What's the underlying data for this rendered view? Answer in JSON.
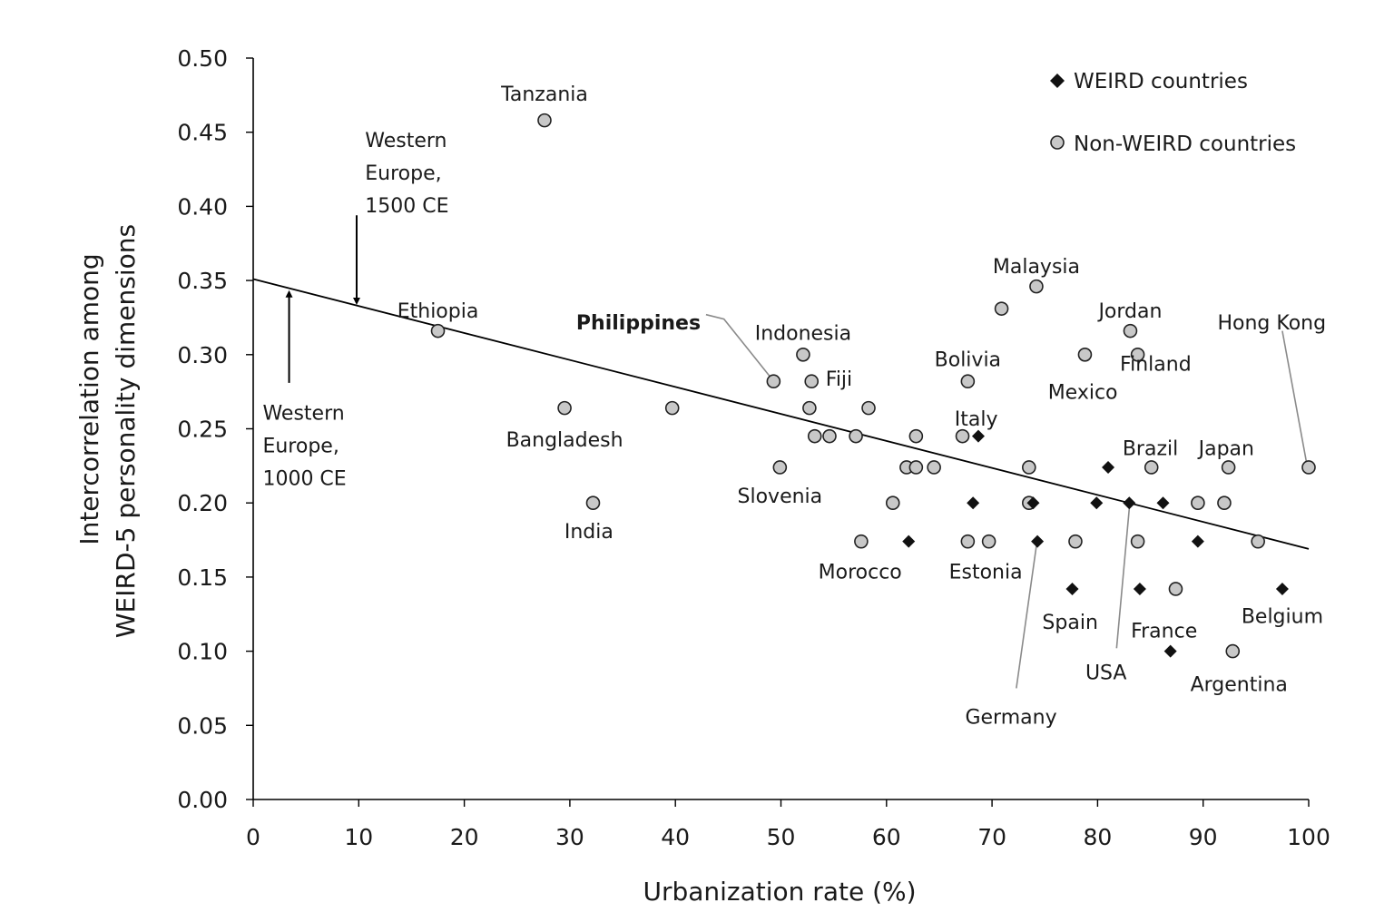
{
  "chart_data": {
    "type": "scatter",
    "title": "",
    "xlabel": "Urbanization rate (%)",
    "ylabel_lines": [
      "Intercorrelation among",
      "WEIRD-5 personality dimensions"
    ],
    "xlim": [
      0,
      100
    ],
    "ylim": [
      0,
      0.5
    ],
    "x_ticks": [
      0,
      10,
      20,
      30,
      40,
      50,
      60,
      70,
      80,
      90,
      100
    ],
    "y_ticks": [
      "0.00",
      "0.05",
      "0.10",
      "0.15",
      "0.20",
      "0.25",
      "0.30",
      "0.35",
      "0.40",
      "0.45",
      "0.50"
    ],
    "grid": false,
    "legend_position": "top-right",
    "legend": [
      {
        "key": "weird",
        "label": "WEIRD countries",
        "marker": "diamond",
        "color": "#111111"
      },
      {
        "key": "non_weird",
        "label": "Non-WEIRD countries",
        "marker": "circle",
        "color": "#c8c8c8"
      }
    ],
    "trendline": {
      "x": [
        0,
        100
      ],
      "y": [
        0.351,
        0.169
      ]
    },
    "series": [
      {
        "key": "non_weird",
        "points": [
          {
            "x": 27.6,
            "y": 0.458
          },
          {
            "x": 17.5,
            "y": 0.316
          },
          {
            "x": 29.5,
            "y": 0.264
          },
          {
            "x": 39.7,
            "y": 0.264
          },
          {
            "x": 32.2,
            "y": 0.2
          },
          {
            "x": 49.3,
            "y": 0.282
          },
          {
            "x": 52.1,
            "y": 0.3
          },
          {
            "x": 52.9,
            "y": 0.282
          },
          {
            "x": 52.7,
            "y": 0.264
          },
          {
            "x": 53.2,
            "y": 0.245
          },
          {
            "x": 54.6,
            "y": 0.245
          },
          {
            "x": 57.1,
            "y": 0.245
          },
          {
            "x": 58.3,
            "y": 0.264
          },
          {
            "x": 49.9,
            "y": 0.224
          },
          {
            "x": 57.6,
            "y": 0.174
          },
          {
            "x": 60.6,
            "y": 0.2
          },
          {
            "x": 61.9,
            "y": 0.224
          },
          {
            "x": 62.8,
            "y": 0.224
          },
          {
            "x": 62.8,
            "y": 0.245
          },
          {
            "x": 64.5,
            "y": 0.224
          },
          {
            "x": 67.2,
            "y": 0.245
          },
          {
            "x": 67.7,
            "y": 0.282
          },
          {
            "x": 67.7,
            "y": 0.174
          },
          {
            "x": 69.7,
            "y": 0.174
          },
          {
            "x": 70.9,
            "y": 0.331
          },
          {
            "x": 74.2,
            "y": 0.346
          },
          {
            "x": 73.5,
            "y": 0.224
          },
          {
            "x": 73.5,
            "y": 0.2
          },
          {
            "x": 77.9,
            "y": 0.174
          },
          {
            "x": 78.8,
            "y": 0.3
          },
          {
            "x": 83.1,
            "y": 0.316
          },
          {
            "x": 83.8,
            "y": 0.3
          },
          {
            "x": 83.8,
            "y": 0.174
          },
          {
            "x": 85.1,
            "y": 0.224
          },
          {
            "x": 87.4,
            "y": 0.142
          },
          {
            "x": 89.5,
            "y": 0.2
          },
          {
            "x": 92.0,
            "y": 0.2
          },
          {
            "x": 92.4,
            "y": 0.224
          },
          {
            "x": 92.8,
            "y": 0.1
          },
          {
            "x": 95.2,
            "y": 0.174
          },
          {
            "x": 100.0,
            "y": 0.224
          }
        ]
      },
      {
        "key": "weird",
        "points": [
          {
            "x": 62.1,
            "y": 0.174
          },
          {
            "x": 68.2,
            "y": 0.2
          },
          {
            "x": 68.7,
            "y": 0.245
          },
          {
            "x": 73.9,
            "y": 0.2
          },
          {
            "x": 74.3,
            "y": 0.174
          },
          {
            "x": 77.6,
            "y": 0.142
          },
          {
            "x": 79.9,
            "y": 0.2
          },
          {
            "x": 81.0,
            "y": 0.224
          },
          {
            "x": 83.0,
            "y": 0.2
          },
          {
            "x": 84.0,
            "y": 0.142
          },
          {
            "x": 86.2,
            "y": 0.2
          },
          {
            "x": 86.9,
            "y": 0.1
          },
          {
            "x": 89.5,
            "y": 0.174
          },
          {
            "x": 97.5,
            "y": 0.142
          }
        ]
      }
    ],
    "annotations": [
      {
        "text": "Tanzania",
        "x": 27.6,
        "y": 0.476,
        "bold": false
      },
      {
        "text": "Ethiopia",
        "x": 17.5,
        "y": 0.33,
        "bold": false
      },
      {
        "text": "Bangladesh",
        "x": 29.5,
        "y": 0.243,
        "bold": false
      },
      {
        "text": "India",
        "x": 31.8,
        "y": 0.181,
        "bold": false
      },
      {
        "text": "Philippines",
        "x": 36.5,
        "y": 0.322,
        "bold": true
      },
      {
        "text": "Indonesia",
        "x": 52.1,
        "y": 0.315,
        "bold": false
      },
      {
        "text": "Fiji",
        "x": 55.5,
        "y": 0.284,
        "bold": false
      },
      {
        "text": "Slovenia",
        "x": 49.9,
        "y": 0.205,
        "bold": false
      },
      {
        "text": "Morocco",
        "x": 57.5,
        "y": 0.154,
        "bold": false
      },
      {
        "text": "Bolivia",
        "x": 67.7,
        "y": 0.297,
        "bold": false
      },
      {
        "text": "Italy",
        "x": 68.5,
        "y": 0.257,
        "bold": false
      },
      {
        "text": "Estonia",
        "x": 69.4,
        "y": 0.154,
        "bold": false
      },
      {
        "text": "Malaysia",
        "x": 74.2,
        "y": 0.36,
        "bold": false
      },
      {
        "text": "Jordan",
        "x": 83.1,
        "y": 0.33,
        "bold": false
      },
      {
        "text": "Mexico",
        "x": 78.6,
        "y": 0.275,
        "bold": false
      },
      {
        "text": "Finland",
        "x": 85.5,
        "y": 0.294,
        "bold": false
      },
      {
        "text": "Hong Kong",
        "x": 96.5,
        "y": 0.322,
        "bold": false
      },
      {
        "text": "Brazil",
        "x": 85.0,
        "y": 0.237,
        "bold": false
      },
      {
        "text": "Japan",
        "x": 92.2,
        "y": 0.237,
        "bold": false
      },
      {
        "text": "Spain",
        "x": 77.4,
        "y": 0.12,
        "bold": false
      },
      {
        "text": "France",
        "x": 86.3,
        "y": 0.114,
        "bold": false
      },
      {
        "text": "Belgium",
        "x": 97.5,
        "y": 0.124,
        "bold": false
      },
      {
        "text": "USA",
        "x": 80.8,
        "y": 0.086,
        "bold": false
      },
      {
        "text": "Argentina",
        "x": 93.4,
        "y": 0.078,
        "bold": false
      },
      {
        "text": "Germany",
        "x": 71.8,
        "y": 0.056,
        "bold": false
      }
    ],
    "leader_lines": [
      {
        "from": [
          42.9,
          0.327
        ],
        "via": [
          44.6,
          0.324
        ],
        "to": [
          49.1,
          0.284
        ]
      },
      {
        "from": [
          97.5,
          0.316
        ],
        "via": null,
        "to": [
          99.8,
          0.227
        ]
      },
      {
        "from": [
          83.0,
          0.196
        ],
        "via": null,
        "to": [
          81.8,
          0.102
        ]
      },
      {
        "from": [
          74.2,
          0.171
        ],
        "via": null,
        "to": [
          72.3,
          0.075
        ]
      }
    ],
    "era_markers": [
      {
        "lines": [
          "Western",
          "Europe,",
          "1500 CE"
        ],
        "x": 10.6,
        "y": 0.445,
        "arrow_x": 9.8,
        "arrow_from": 0.394,
        "arrow_to": 0.336,
        "direction": "down"
      },
      {
        "lines": [
          "Western",
          "Europe,",
          "1000 CE"
        ],
        "x": 0.9,
        "y": 0.261,
        "arrow_x": 3.4,
        "arrow_from": 0.281,
        "arrow_to": 0.341,
        "direction": "up"
      }
    ]
  }
}
